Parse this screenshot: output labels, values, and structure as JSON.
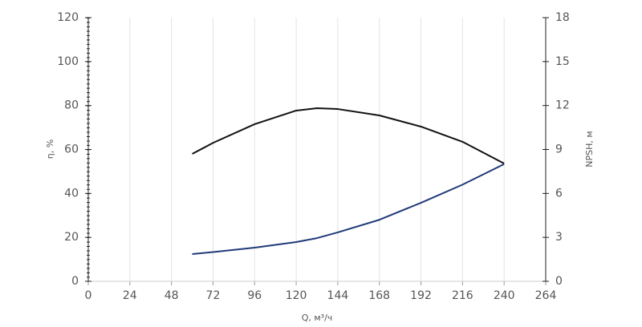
{
  "chart_data": {
    "type": "line",
    "x_label": "Q, м³/ч",
    "y_label": "η, %",
    "y2_label": "NPSH, м",
    "x": [
      60,
      72,
      96,
      120,
      132,
      144,
      168,
      192,
      216,
      240
    ],
    "series": [
      {
        "color": "#111111",
        "values": [
          58,
          63,
          71.5,
          77.7,
          78.8,
          78.4,
          75.5,
          70.4,
          63.5,
          53.6
        ]
      },
      {
        "color": "#1f3a78",
        "axis": "y2",
        "values": [
          1.86,
          2.0,
          2.3,
          2.68,
          2.95,
          3.34,
          4.2,
          5.36,
          6.6,
          8.0
        ]
      }
    ],
    "xlim": [
      0,
      264
    ],
    "xticks": [
      0,
      24,
      48,
      72,
      96,
      120,
      144,
      168,
      192,
      216,
      240,
      264
    ],
    "ylim": [
      0,
      120
    ],
    "yticks": [
      0,
      20,
      40,
      60,
      80,
      100,
      120
    ],
    "y2lim": [
      0,
      18
    ],
    "y2ticks": [
      0,
      3,
      6,
      9,
      12,
      15,
      18
    ],
    "grid": "x"
  }
}
